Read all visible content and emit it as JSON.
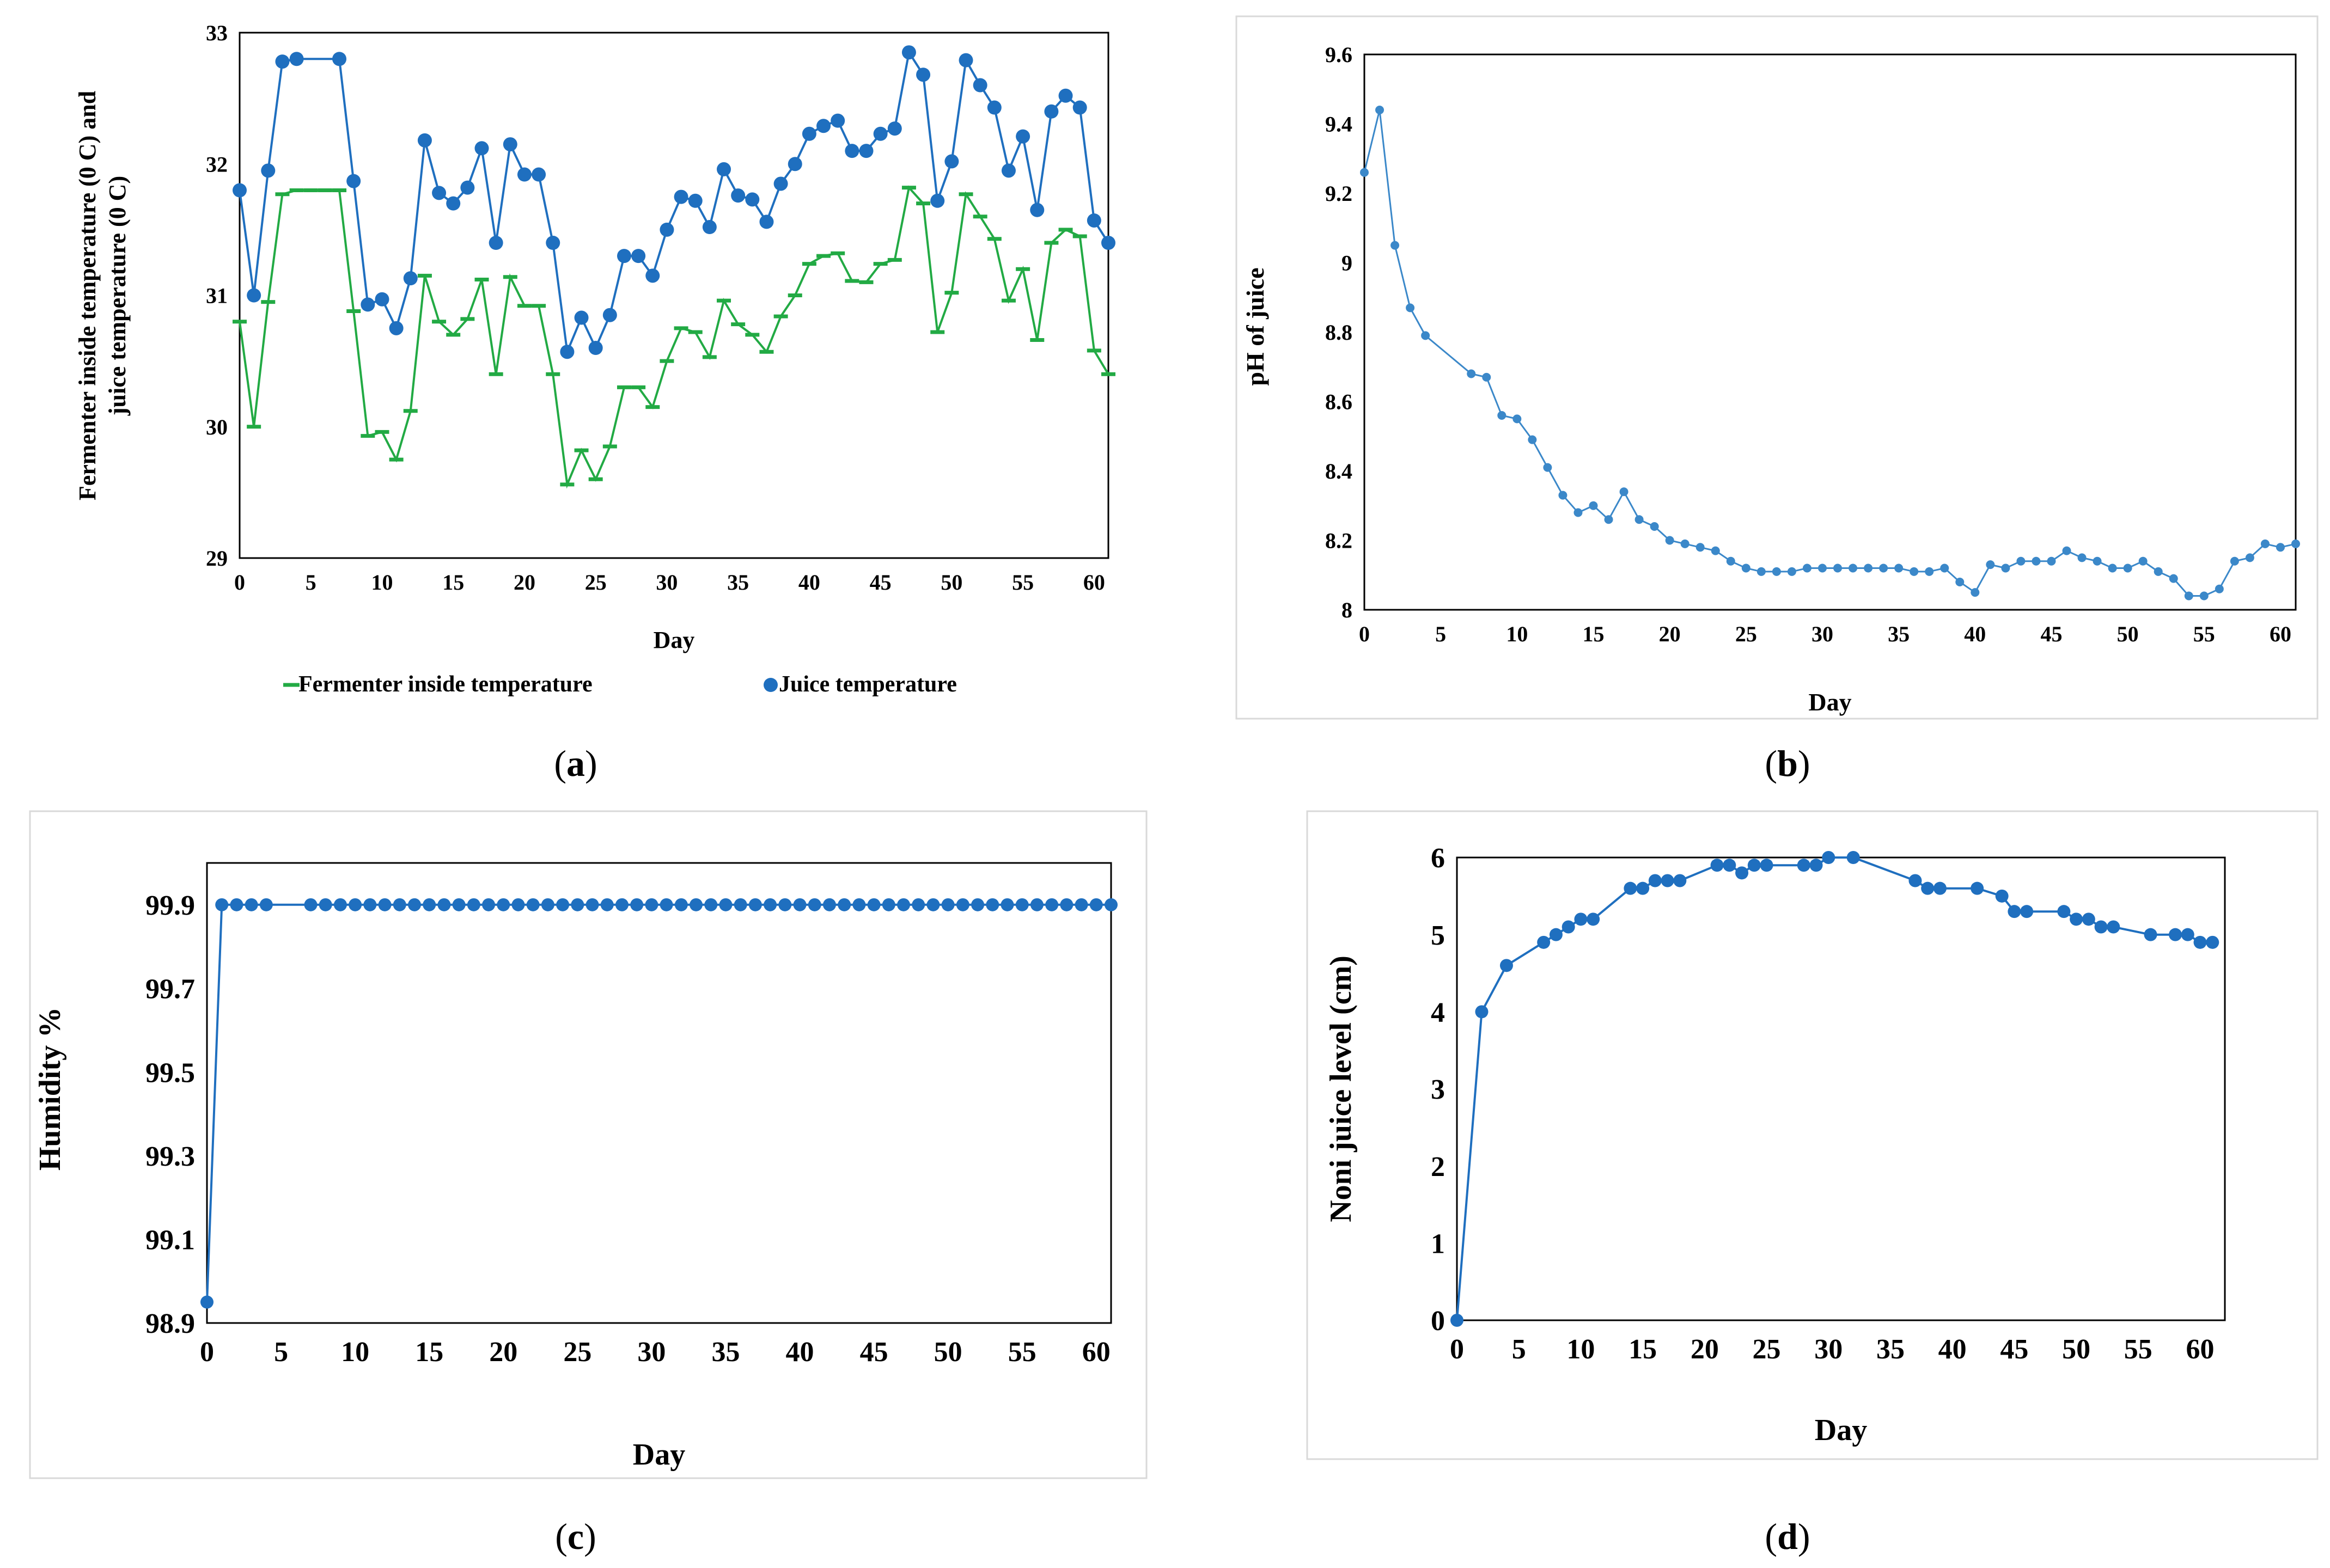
{
  "chart_data": [
    {
      "id": "a",
      "type": "line",
      "panel_label": "a",
      "xlabel": "Day",
      "ylabel_lines": [
        "Fermenter inside temperature (0 C) and",
        "juice temperature (0 C)"
      ],
      "xlim": [
        0,
        61
      ],
      "ylim": [
        29,
        33
      ],
      "xticks": [
        0,
        5,
        10,
        15,
        20,
        25,
        30,
        35,
        40,
        45,
        50,
        55,
        60
      ],
      "yticks": [
        29,
        30,
        31,
        32,
        33
      ],
      "series": [
        {
          "name": "Fermenter inside temperature",
          "color": "#22aa44",
          "marker": "dash",
          "x": [
            0,
            1,
            2,
            3,
            4,
            5,
            6,
            7,
            8,
            9,
            10,
            11,
            12,
            13,
            14,
            15,
            16,
            17,
            18,
            19,
            20,
            21,
            22,
            23,
            24,
            25,
            26,
            27,
            28,
            29,
            30,
            31,
            32,
            33,
            34,
            35,
            36,
            37,
            38,
            39,
            40,
            41,
            42,
            43,
            44,
            45,
            46,
            47,
            48,
            49,
            50,
            51,
            52,
            53,
            54,
            55,
            56,
            57,
            58,
            59,
            60,
            61
          ],
          "values": [
            30.8,
            30.0,
            30.95,
            31.77,
            31.8,
            31.8,
            31.8,
            31.8,
            30.88,
            29.93,
            29.96,
            29.75,
            30.12,
            31.15,
            30.8,
            30.7,
            30.82,
            31.12,
            30.4,
            31.14,
            30.92,
            30.92,
            30.4,
            29.56,
            29.82,
            29.6,
            29.85,
            30.3,
            30.3,
            30.15,
            30.5,
            30.75,
            30.72,
            30.53,
            30.96,
            30.78,
            30.7,
            30.57,
            30.84,
            31.0,
            31.24,
            31.3,
            31.32,
            31.11,
            31.1,
            31.24,
            31.27,
            31.82,
            31.7,
            30.72,
            31.02,
            31.77,
            31.6,
            31.43,
            30.96,
            31.2,
            30.66,
            31.4,
            31.5,
            31.45,
            30.58,
            30.4
          ]
        },
        {
          "name": "Juice temperature",
          "color": "#1f6fbf",
          "marker": "circle",
          "x": [
            0,
            1,
            2,
            3,
            4,
            7,
            8,
            9,
            10,
            11,
            12,
            13,
            14,
            15,
            16,
            17,
            18,
            19,
            20,
            21,
            22,
            23,
            24,
            25,
            26,
            27,
            28,
            29,
            30,
            31,
            32,
            33,
            34,
            35,
            36,
            37,
            38,
            39,
            40,
            41,
            42,
            43,
            44,
            45,
            46,
            47,
            48,
            49,
            50,
            51,
            52,
            53,
            54,
            55,
            56,
            57,
            58,
            59,
            60,
            61
          ],
          "values": [
            31.8,
            31.0,
            31.95,
            32.78,
            32.8,
            32.8,
            31.87,
            30.93,
            30.97,
            30.75,
            31.13,
            32.18,
            31.78,
            31.7,
            31.82,
            32.12,
            31.4,
            32.15,
            31.92,
            31.92,
            31.4,
            30.57,
            30.83,
            30.6,
            30.85,
            31.3,
            31.3,
            31.15,
            31.5,
            31.75,
            31.72,
            31.52,
            31.96,
            31.76,
            31.73,
            31.56,
            31.85,
            32.0,
            32.23,
            32.29,
            32.33,
            32.1,
            32.1,
            32.23,
            32.27,
            32.85,
            32.68,
            31.72,
            32.02,
            32.79,
            32.6,
            32.43,
            31.95,
            32.21,
            31.65,
            32.4,
            32.52,
            32.43,
            31.57,
            31.4
          ]
        }
      ],
      "legend": [
        "Fermenter inside temperature",
        "Juice temperature"
      ],
      "legend_position": "bottom"
    },
    {
      "id": "b",
      "type": "line",
      "panel_label": "b",
      "xlabel": "Day",
      "ylabel": "pH of  juice",
      "xlim": [
        0,
        61
      ],
      "ylim": [
        8,
        9.6
      ],
      "xticks": [
        0,
        5,
        10,
        15,
        20,
        25,
        30,
        35,
        40,
        45,
        50,
        55,
        60
      ],
      "yticks": [
        "8",
        "8.2",
        "8.4",
        "8.6",
        "8.8",
        "9",
        "9.2",
        "9.4",
        "9.6"
      ],
      "series": [
        {
          "name": "pH",
          "color": "#3b88c9",
          "marker": "circle",
          "x": [
            0,
            1,
            2,
            3,
            4,
            7,
            8,
            9,
            10,
            11,
            12,
            13,
            14,
            15,
            16,
            17,
            18,
            19,
            20,
            21,
            22,
            23,
            24,
            25,
            26,
            27,
            28,
            29,
            30,
            31,
            32,
            33,
            34,
            35,
            36,
            37,
            38,
            39,
            40,
            41,
            42,
            43,
            44,
            45,
            46,
            47,
            48,
            49,
            50,
            51,
            52,
            53,
            54,
            55,
            56,
            57,
            58,
            59,
            60,
            61
          ],
          "values": [
            9.26,
            9.44,
            9.05,
            8.87,
            8.79,
            8.68,
            8.67,
            8.56,
            8.55,
            8.49,
            8.41,
            8.33,
            8.28,
            8.3,
            8.26,
            8.34,
            8.26,
            8.24,
            8.2,
            8.19,
            8.18,
            8.17,
            8.14,
            8.12,
            8.11,
            8.11,
            8.11,
            8.12,
            8.12,
            8.12,
            8.12,
            8.12,
            8.12,
            8.12,
            8.11,
            8.11,
            8.12,
            8.08,
            8.05,
            8.13,
            8.12,
            8.14,
            8.14,
            8.14,
            8.17,
            8.15,
            8.14,
            8.12,
            8.12,
            8.14,
            8.11,
            8.09,
            8.04,
            8.04,
            8.06,
            8.14,
            8.15,
            8.19,
            8.18,
            8.19
          ]
        }
      ]
    },
    {
      "id": "c",
      "type": "line",
      "panel_label": "c",
      "xlabel": "Day",
      "ylabel": "Humidity %",
      "xlim": [
        0,
        61
      ],
      "ylim": [
        98.9,
        100.0
      ],
      "xticks": [
        0,
        5,
        10,
        15,
        20,
        25,
        30,
        35,
        40,
        45,
        50,
        55,
        60
      ],
      "yticks": [
        "98.9",
        "99.1",
        "99.3",
        "99.5",
        "99.7",
        "99.9"
      ],
      "series": [
        {
          "name": "Humidity",
          "color": "#1f6fbf",
          "marker": "circle",
          "x": [
            0,
            1,
            2,
            3,
            4,
            7,
            8,
            9,
            10,
            11,
            12,
            13,
            14,
            15,
            16,
            17,
            18,
            19,
            20,
            21,
            22,
            23,
            24,
            25,
            26,
            27,
            28,
            29,
            30,
            31,
            32,
            33,
            34,
            35,
            36,
            37,
            38,
            39,
            40,
            41,
            42,
            43,
            44,
            45,
            46,
            47,
            48,
            49,
            50,
            51,
            52,
            53,
            54,
            55,
            56,
            57,
            58,
            59,
            60,
            61
          ],
          "values": [
            98.95,
            99.9,
            99.9,
            99.9,
            99.9,
            99.9,
            99.9,
            99.9,
            99.9,
            99.9,
            99.9,
            99.9,
            99.9,
            99.9,
            99.9,
            99.9,
            99.9,
            99.9,
            99.9,
            99.9,
            99.9,
            99.9,
            99.9,
            99.9,
            99.9,
            99.9,
            99.9,
            99.9,
            99.9,
            99.9,
            99.9,
            99.9,
            99.9,
            99.9,
            99.9,
            99.9,
            99.9,
            99.9,
            99.9,
            99.9,
            99.9,
            99.9,
            99.9,
            99.9,
            99.9,
            99.9,
            99.9,
            99.9,
            99.9,
            99.9,
            99.9,
            99.9,
            99.9,
            99.9,
            99.9,
            99.9,
            99.9,
            99.9,
            99.9,
            99.9
          ]
        }
      ]
    },
    {
      "id": "d",
      "type": "line",
      "panel_label": "d",
      "xlabel": "Day",
      "ylabel": "Noni  juice level (cm)",
      "xlim": [
        0,
        62
      ],
      "ylim": [
        0,
        6
      ],
      "xticks": [
        0,
        5,
        10,
        15,
        20,
        25,
        30,
        35,
        40,
        45,
        50,
        55,
        60
      ],
      "yticks": [
        0,
        1,
        2,
        3,
        4,
        5,
        6
      ],
      "series": [
        {
          "name": "Noni juice level",
          "color": "#1f6fbf",
          "marker": "circle",
          "x": [
            0,
            2,
            4,
            7,
            8,
            9,
            10,
            11,
            14,
            15,
            16,
            17,
            18,
            21,
            22,
            23,
            24,
            25,
            28,
            29,
            30,
            32,
            37,
            38,
            39,
            42,
            44,
            45,
            46,
            49,
            50,
            51,
            52,
            53,
            56,
            58,
            59,
            60,
            61
          ],
          "values": [
            0,
            4.0,
            4.6,
            4.9,
            5.0,
            5.1,
            5.2,
            5.2,
            5.6,
            5.6,
            5.7,
            5.7,
            5.7,
            5.9,
            5.9,
            5.8,
            5.9,
            5.9,
            5.9,
            5.9,
            6.0,
            6.0,
            5.7,
            5.6,
            5.6,
            5.6,
            5.5,
            5.3,
            5.3,
            5.3,
            5.2,
            5.2,
            5.1,
            5.1,
            5.0,
            5.0,
            5.0,
            4.9,
            4.9
          ]
        }
      ]
    }
  ]
}
